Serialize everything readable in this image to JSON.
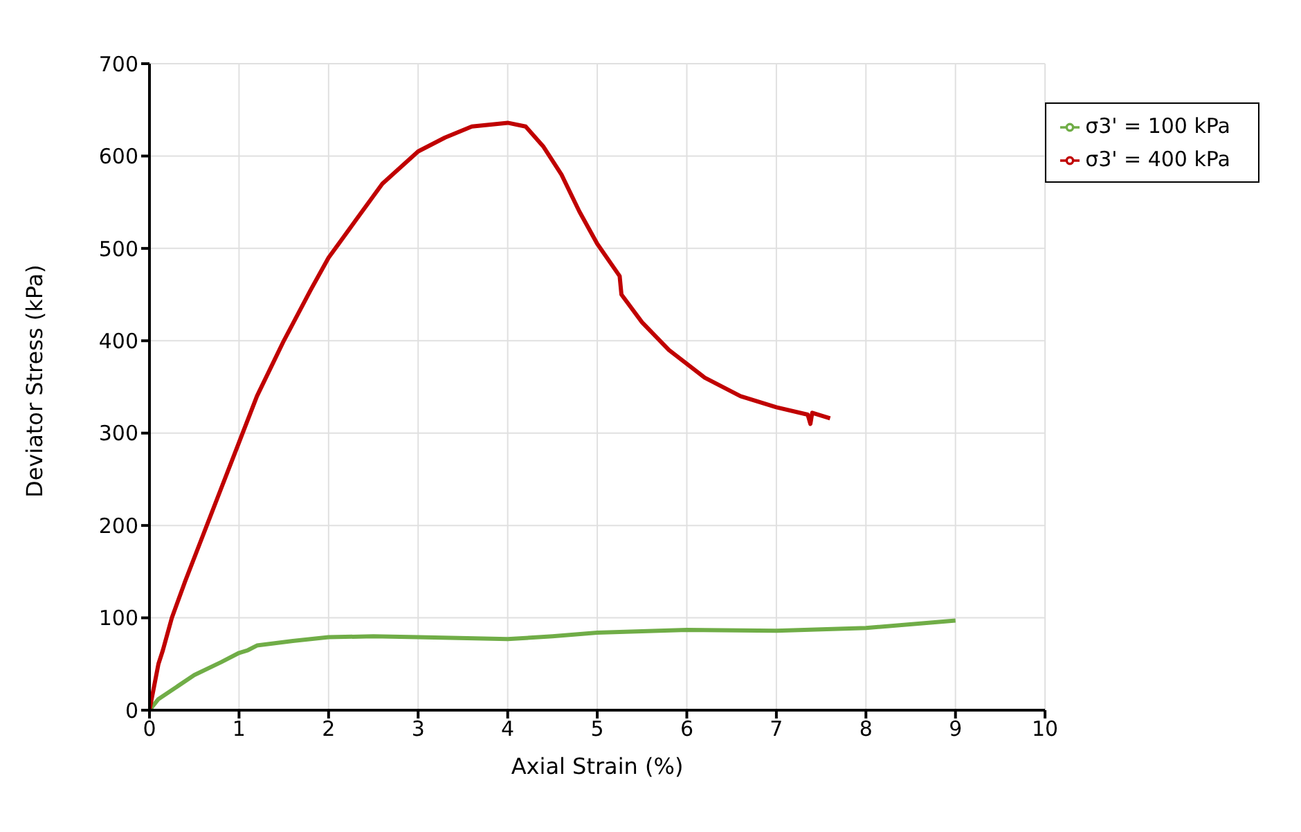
{
  "chart_data": {
    "type": "line",
    "xlabel": "Axial Strain (%)",
    "ylabel": "Deviator Stress (kPa)",
    "xlim": [
      0,
      10
    ],
    "xticks": [
      0,
      1,
      2,
      3,
      4,
      5,
      6,
      7,
      8,
      9,
      10
    ],
    "ylim": [
      0,
      700
    ],
    "yticks": [
      0,
      100,
      200,
      300,
      400,
      500,
      600,
      700
    ],
    "grid": true,
    "legend": "top right",
    "marker": "none",
    "line_style": "solid",
    "series": [
      {
        "name": "σ3' = 100 kPa",
        "color": "#70ad47",
        "x": [
          0,
          0.1,
          0.3,
          0.5,
          0.8,
          1,
          1.1,
          1.2,
          1.6,
          2,
          2.5,
          3,
          4,
          4.5,
          5,
          6,
          7,
          8,
          9
        ],
        "values": [
          0,
          12,
          25,
          38,
          52,
          62,
          65,
          70,
          75,
          79,
          80,
          79,
          77,
          80,
          84,
          87,
          86,
          89,
          97
        ]
      },
      {
        "name": "σ3' = 400 kPa",
        "color": "#c00000",
        "x": [
          0,
          0.1,
          0.15,
          0.25,
          0.4,
          0.6,
          0.8,
          1,
          1.2,
          1.5,
          1.8,
          2,
          2.3,
          2.6,
          3,
          3.3,
          3.6,
          4,
          4.2,
          4.4,
          4.6,
          4.8,
          5,
          5.25,
          5.27,
          5.5,
          5.8,
          6.2,
          6.6,
          7,
          7.35,
          7.38,
          7.4,
          7.6
        ],
        "values": [
          0,
          50,
          65,
          100,
          140,
          190,
          240,
          290,
          340,
          400,
          455,
          490,
          530,
          570,
          605,
          620,
          632,
          636,
          632,
          610,
          580,
          540,
          505,
          470,
          450,
          420,
          390,
          360,
          340,
          328,
          320,
          310,
          322,
          316
        ]
      }
    ]
  }
}
